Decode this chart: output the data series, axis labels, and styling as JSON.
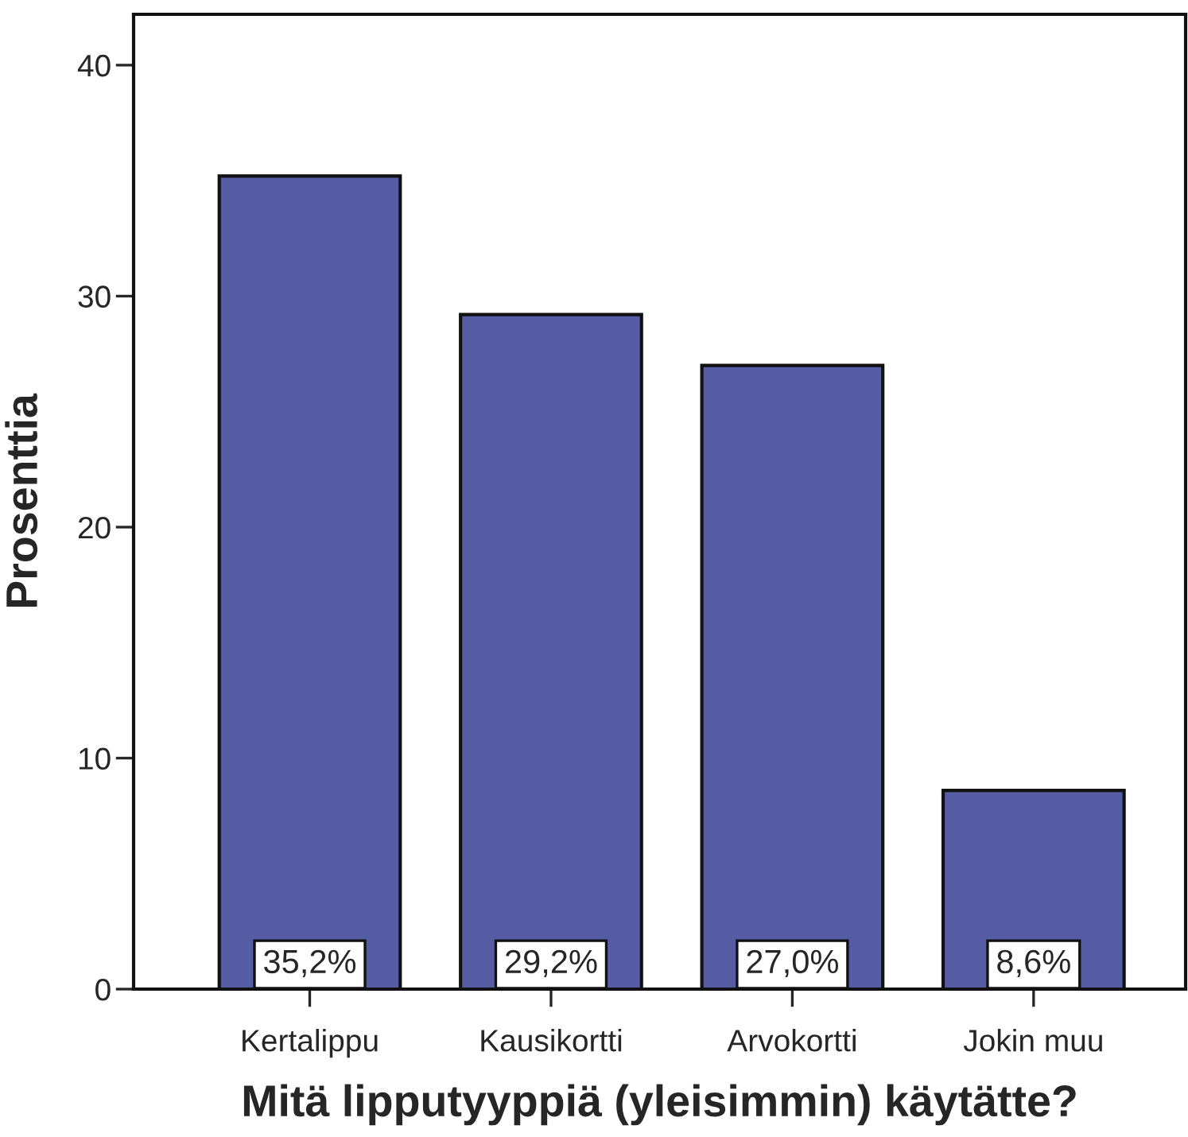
{
  "chart_data": {
    "type": "bar",
    "xlabel": "Mitä lipputyyppiä (yleisimmin) käytätte?",
    "ylabel": "Prosenttia",
    "categories": [
      "Kertalippu",
      "Kausikortti",
      "Arvokortti",
      "Jokin muu"
    ],
    "values": [
      35.2,
      29.2,
      27.0,
      8.6
    ],
    "value_labels": [
      "35,2%",
      "29,2%",
      "27,0%",
      "8,6%"
    ],
    "color": "#565ca3",
    "ylim": [
      0,
      42.2
    ],
    "yticks": [
      0,
      10,
      20,
      30,
      40
    ],
    "grid": false
  }
}
